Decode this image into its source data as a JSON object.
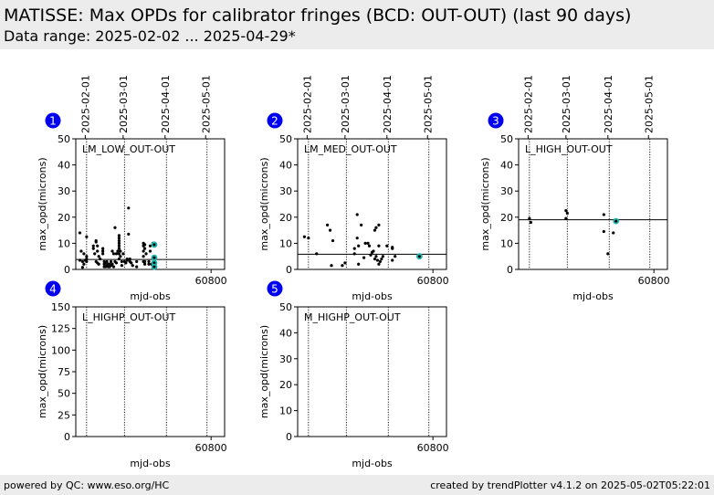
{
  "header": {
    "title": "MATISSE: Max OPDs for calibrator fringes (BCD: OUT-OUT) (last 90 days)",
    "subtitle": "Data range: 2025-02-02 ... 2025-04-29*"
  },
  "footer": {
    "left": "powered by QC: www.eso.org/HC",
    "right": "created by trendPlotter v4.1.2 on 2025-05-02T05:22:01"
  },
  "colors": {
    "badge": "#0000ee",
    "highlight": "#20b2aa",
    "points": "#000000",
    "header_bg": "#ececec"
  },
  "chart_data": [
    {
      "type": "scatter",
      "panel": "1",
      "label": "LM_LOW_OUT-OUT",
      "xlabel": "mjd-obs",
      "ylabel": "max_opd(microns)",
      "xlim": [
        60700,
        60810
      ],
      "ylim": [
        0,
        50
      ],
      "yticks": [
        0,
        10,
        20,
        30,
        40,
        50
      ],
      "xticks": [
        60800
      ],
      "date_ticks": [
        {
          "label": "2025-02-01",
          "mjd": 60707
        },
        {
          "label": "2025-03-01",
          "mjd": 60735
        },
        {
          "label": "2025-04-01",
          "mjd": 60766
        },
        {
          "label": "2025-05-01",
          "mjd": 60796
        }
      ],
      "marker_lines": [
        60708,
        60736,
        60767,
        60797
      ],
      "reference_line": 3.8,
      "points": [
        [
          60703,
          14
        ],
        [
          60703,
          3.5
        ],
        [
          60704,
          7
        ],
        [
          60705,
          3
        ],
        [
          60705,
          0.8
        ],
        [
          60706,
          6
        ],
        [
          60706,
          2
        ],
        [
          60707,
          3.5
        ],
        [
          60708,
          12.5
        ],
        [
          60708,
          5
        ],
        [
          60708,
          4
        ],
        [
          60708,
          3
        ],
        [
          60713,
          8
        ],
        [
          60713,
          9
        ],
        [
          60714,
          6
        ],
        [
          60715,
          10.5
        ],
        [
          60715,
          11
        ],
        [
          60715,
          3
        ],
        [
          60716,
          9
        ],
        [
          60716,
          7
        ],
        [
          60716,
          2.5
        ],
        [
          60717,
          5
        ],
        [
          60717,
          2
        ],
        [
          60718,
          4
        ],
        [
          60720,
          8
        ],
        [
          60720,
          7
        ],
        [
          60720,
          6
        ],
        [
          60721,
          3
        ],
        [
          60721,
          2
        ],
        [
          60721,
          1
        ],
        [
          60722,
          2.5
        ],
        [
          60722,
          1
        ],
        [
          60723,
          1.5
        ],
        [
          60723,
          3
        ],
        [
          60724,
          1
        ],
        [
          60724,
          2
        ],
        [
          60725,
          2
        ],
        [
          60725,
          1
        ],
        [
          60726,
          1.5
        ],
        [
          60726,
          3
        ],
        [
          60727,
          7
        ],
        [
          60727,
          2
        ],
        [
          60728,
          6
        ],
        [
          60728,
          1
        ],
        [
          60729,
          16
        ],
        [
          60729,
          3
        ],
        [
          60730,
          2.5
        ],
        [
          60730,
          6
        ],
        [
          60731,
          7
        ],
        [
          60732,
          13
        ],
        [
          60732,
          12
        ],
        [
          60732,
          11
        ],
        [
          60732,
          10
        ],
        [
          60732,
          9
        ],
        [
          60732,
          8
        ],
        [
          60732,
          6
        ],
        [
          60732,
          4
        ],
        [
          60733,
          7
        ],
        [
          60733,
          5
        ],
        [
          60734,
          3
        ],
        [
          60734,
          1.5
        ],
        [
          60735,
          6
        ],
        [
          60736,
          3
        ],
        [
          60737,
          2.5
        ],
        [
          60738,
          4
        ],
        [
          60738,
          3.5
        ],
        [
          60739,
          23.5
        ],
        [
          60739,
          13.5
        ],
        [
          60740,
          4
        ],
        [
          60740,
          3
        ],
        [
          60741,
          2.5
        ],
        [
          60742,
          1.5
        ],
        [
          60745,
          3
        ],
        [
          60745,
          1
        ],
        [
          60750,
          10
        ],
        [
          60750,
          9
        ],
        [
          60750,
          7
        ],
        [
          60750,
          5
        ],
        [
          60750,
          3
        ],
        [
          60751,
          9.5
        ],
        [
          60751,
          8
        ],
        [
          60751,
          3
        ],
        [
          60751,
          2
        ],
        [
          60752,
          6
        ],
        [
          60754,
          3
        ],
        [
          60754,
          2
        ],
        [
          60755,
          9
        ],
        [
          60755,
          7
        ],
        [
          60756,
          2
        ],
        [
          60757,
          1.5
        ],
        [
          60757,
          10
        ]
      ],
      "highlight_points": [
        [
          60758,
          9.5
        ],
        [
          60758,
          4.5
        ],
        [
          60758,
          2.5
        ],
        [
          60758,
          1
        ]
      ]
    },
    {
      "type": "scatter",
      "panel": "2",
      "label": "LM_MED_OUT-OUT",
      "xlabel": "mjd-obs",
      "ylabel": "max_opd(microns)",
      "xlim": [
        60700,
        60810
      ],
      "ylim": [
        0,
        50
      ],
      "yticks": [
        0,
        10,
        20,
        30,
        40,
        50
      ],
      "xticks": [
        60800
      ],
      "date_ticks": [
        {
          "label": "2025-02-01",
          "mjd": 60707
        },
        {
          "label": "2025-03-01",
          "mjd": 60735
        },
        {
          "label": "2025-04-01",
          "mjd": 60766
        },
        {
          "label": "2025-05-01",
          "mjd": 60796
        }
      ],
      "marker_lines": [
        60708,
        60736,
        60767,
        60797
      ],
      "reference_line": 5.8,
      "points": [
        [
          60705,
          12.5
        ],
        [
          60708,
          12
        ],
        [
          60714,
          6
        ],
        [
          60722,
          17
        ],
        [
          60724,
          15
        ],
        [
          60725,
          1.5
        ],
        [
          60726,
          11
        ],
        [
          60733,
          1.5
        ],
        [
          60735,
          2.5
        ],
        [
          60742,
          6
        ],
        [
          60742,
          8
        ],
        [
          60744,
          21
        ],
        [
          60744,
          12
        ],
        [
          60745,
          9
        ],
        [
          60745,
          2
        ],
        [
          60747,
          17
        ],
        [
          60749,
          4.5
        ],
        [
          60750,
          10
        ],
        [
          60752,
          10
        ],
        [
          60753,
          9
        ],
        [
          60754,
          5.5
        ],
        [
          60755,
          6.5
        ],
        [
          60756,
          7
        ],
        [
          60757,
          15
        ],
        [
          60757,
          4
        ],
        [
          60758,
          16
        ],
        [
          60758,
          5
        ],
        [
          60759,
          3.5
        ],
        [
          60760,
          17
        ],
        [
          60760,
          9
        ],
        [
          60760,
          2
        ],
        [
          60761,
          3
        ],
        [
          60762,
          4
        ],
        [
          60763,
          5
        ],
        [
          60766,
          9
        ],
        [
          60770,
          8
        ],
        [
          60770,
          8.5
        ],
        [
          60770,
          3.5
        ],
        [
          60772,
          5
        ]
      ],
      "highlight_points": [
        [
          60790,
          5
        ]
      ]
    },
    {
      "type": "scatter",
      "panel": "3",
      "label": "L_HIGH_OUT-OUT",
      "xlabel": "mjd-obs",
      "ylabel": "max_opd(microns)",
      "xlim": [
        60700,
        60810
      ],
      "ylim": [
        0,
        50
      ],
      "yticks": [
        0,
        10,
        20,
        30,
        40,
        50
      ],
      "xticks": [
        60800
      ],
      "date_ticks": [
        {
          "label": "2025-02-01",
          "mjd": 60707
        },
        {
          "label": "2025-03-01",
          "mjd": 60735
        },
        {
          "label": "2025-04-01",
          "mjd": 60766
        },
        {
          "label": "2025-05-01",
          "mjd": 60796
        }
      ],
      "marker_lines": [
        60708,
        60736,
        60767,
        60797
      ],
      "reference_line": 19,
      "points": [
        [
          60708,
          19.5
        ],
        [
          60709,
          18
        ],
        [
          60735,
          22.5
        ],
        [
          60736,
          21.5
        ],
        [
          60735,
          19.5
        ],
        [
          60763,
          21
        ],
        [
          60763,
          14.5
        ],
        [
          60766,
          6
        ],
        [
          60770,
          14
        ]
      ],
      "highlight_points": [
        [
          60772,
          18.5
        ]
      ]
    },
    {
      "type": "scatter",
      "panel": "4",
      "label": "L_HIGHP_OUT-OUT",
      "xlabel": "mjd-obs",
      "ylabel": "max_opd(microns)",
      "xlim": [
        60700,
        60810
      ],
      "ylim": [
        0,
        150
      ],
      "yticks": [
        0,
        25,
        50,
        75,
        100,
        125,
        150
      ],
      "xticks": [
        60800
      ],
      "date_ticks": [],
      "marker_lines": [
        60708,
        60736,
        60767,
        60797
      ],
      "reference_line": null,
      "points": [],
      "highlight_points": []
    },
    {
      "type": "scatter",
      "panel": "5",
      "label": "M_HIGHP_OUT-OUT",
      "xlabel": "mjd-obs",
      "ylabel": "max_opd(microns)",
      "xlim": [
        60700,
        60810
      ],
      "ylim": [
        0,
        50
      ],
      "yticks": [
        0,
        10,
        20,
        30,
        40,
        50
      ],
      "xticks": [
        60800
      ],
      "date_ticks": [],
      "marker_lines": [
        60708,
        60736,
        60767,
        60797
      ],
      "reference_line": null,
      "points": [],
      "highlight_points": []
    }
  ]
}
